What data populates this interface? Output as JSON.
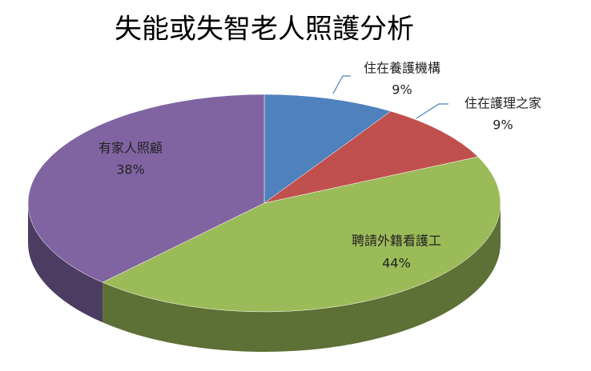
{
  "chart_data": {
    "type": "pie",
    "title": "失能或失智老人照護分析",
    "categories": [
      "住在養護機構",
      "住在護理之家",
      "聘請外籍看護工",
      "有家人照顧"
    ],
    "values": [
      9,
      9,
      44,
      38
    ],
    "value_labels": [
      "9%",
      "9%",
      "44%",
      "38%"
    ],
    "colors": [
      "#4f81bd",
      "#c0504d",
      "#9bbb59",
      "#8064a2"
    ]
  }
}
